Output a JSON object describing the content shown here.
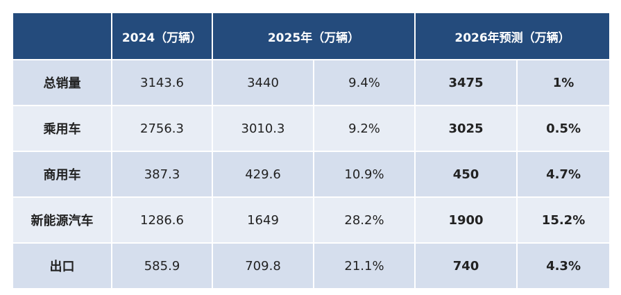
{
  "table": {
    "header": [
      "2024（万辆）",
      "2025年（万辆）",
      "2026年预测（万辆）"
    ],
    "rows": [
      [
        "总销量",
        "3143.6",
        "3440",
        "9.4%",
        "3475",
        "1%"
      ],
      [
        "乘用车",
        "2756.3",
        "3010.3",
        "9.2%",
        "3025",
        "0.5%"
      ],
      [
        "商用车",
        "387.3",
        "429.6",
        "10.9%",
        "450",
        "4.7%"
      ],
      [
        "新能源汽车",
        "1286.6",
        "1649",
        "28.2%",
        "1900",
        "15.2%"
      ],
      [
        "出口",
        "585.9",
        "709.8",
        "21.1%",
        "740",
        "4.3%"
      ]
    ]
  }
}
